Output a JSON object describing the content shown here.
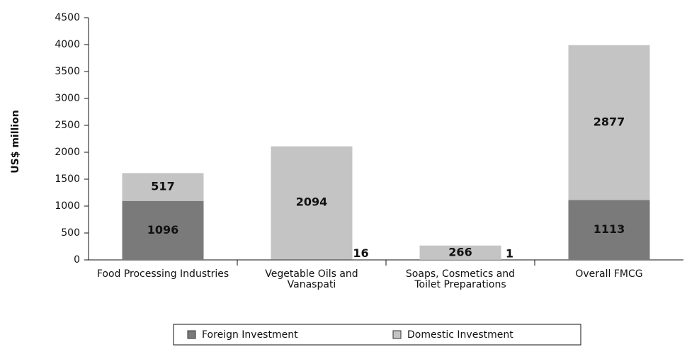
{
  "chart_data": {
    "type": "bar",
    "stacked": true,
    "y_label": "US$ million",
    "categories": [
      "Food Processing Industries",
      "Vegetable Oils and Vanaspati",
      "Soaps, Cosmetics and Toilet Preparations",
      "Overall FMCG"
    ],
    "series": [
      {
        "name": "Foreign Investment",
        "color": "#7a7a7a",
        "values": [
          1096,
          16,
          1,
          1113
        ]
      },
      {
        "name": "Domestic Investment",
        "color": "#c4c4c4",
        "values": [
          517,
          2094,
          266,
          2877
        ]
      }
    ],
    "ylim": [
      0,
      4500
    ],
    "yticks": [
      0,
      500,
      1000,
      1500,
      2000,
      2500,
      3000,
      3500,
      4000,
      4500
    ]
  }
}
